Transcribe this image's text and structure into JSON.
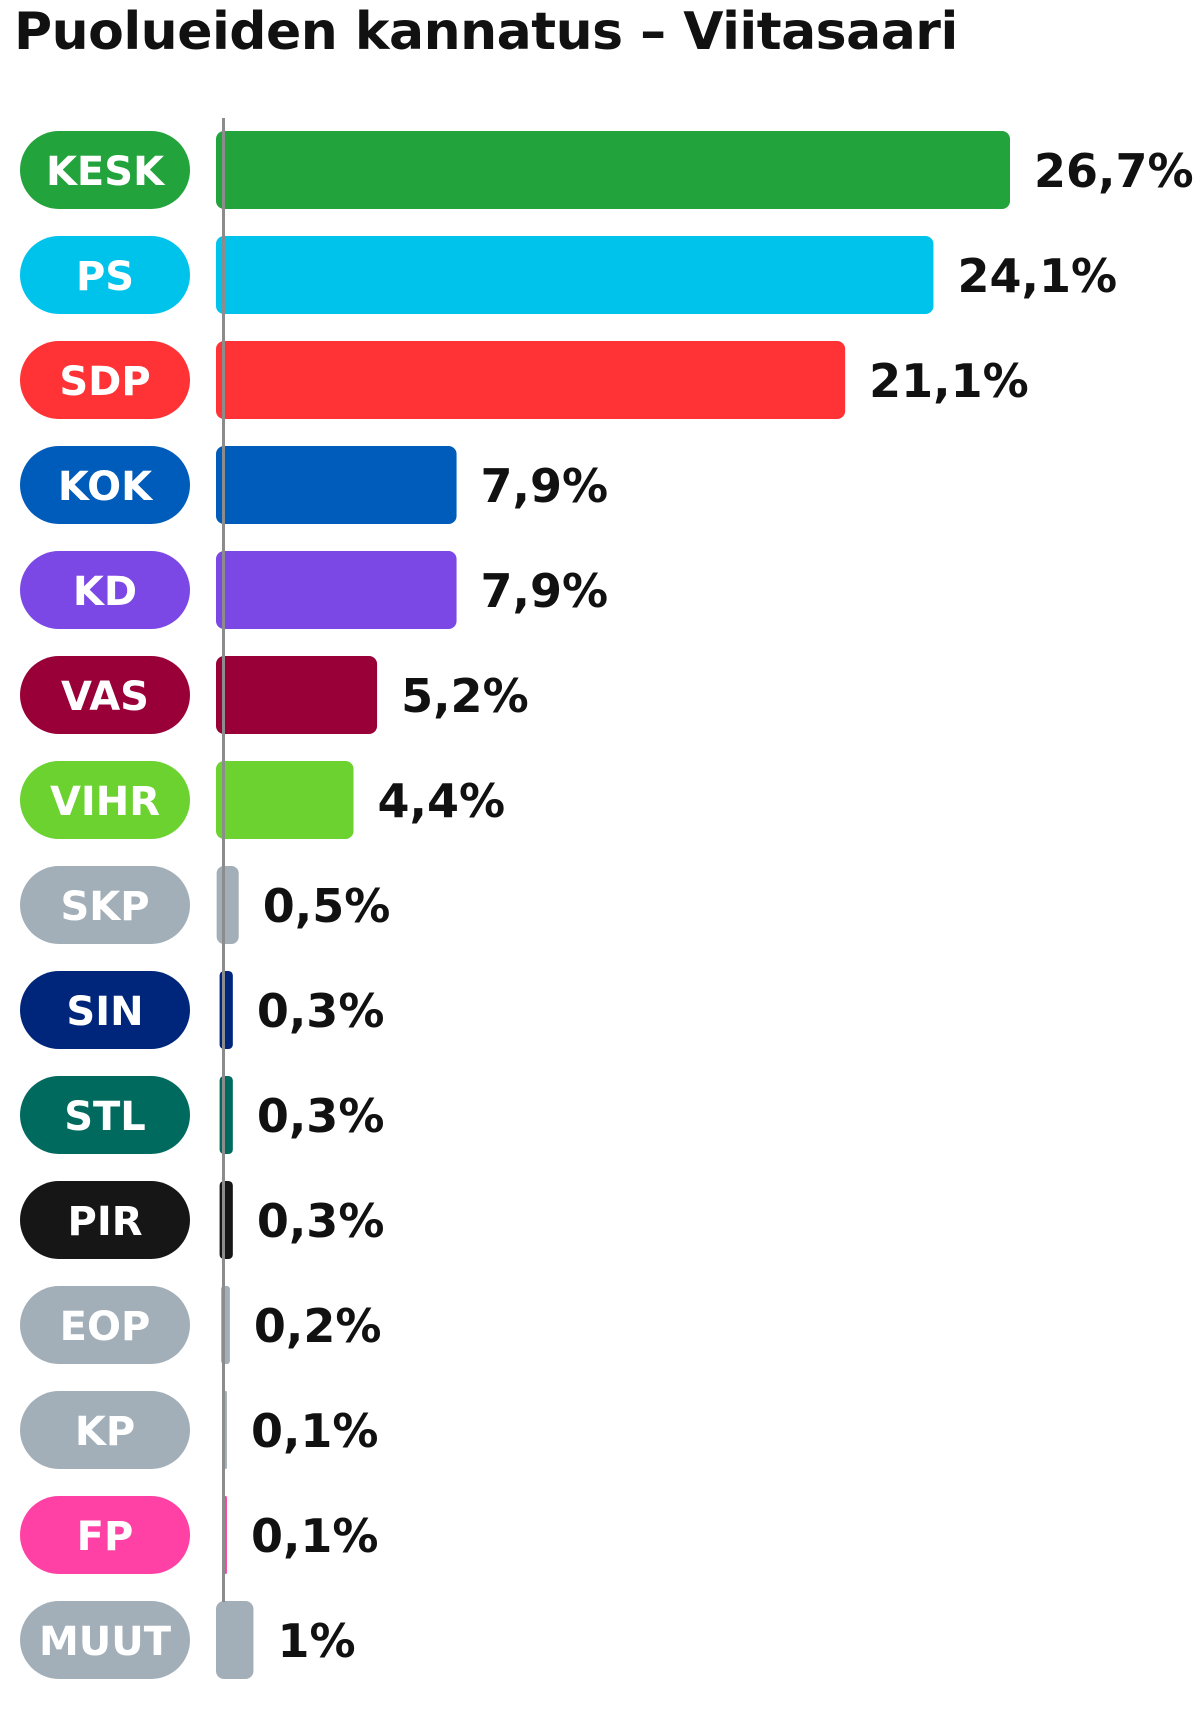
{
  "title": "Puolueiden kannatus – Viitasaari",
  "chart_data": {
    "type": "bar",
    "orientation": "horizontal",
    "title": "Puolueiden kannatus – Viitasaari",
    "xlabel": "",
    "ylabel": "",
    "xlim": [
      0,
      26.7
    ],
    "grid": false,
    "legend": "none",
    "categories": [
      "KESK",
      "PS",
      "SDP",
      "KOK",
      "KD",
      "VAS",
      "VIHR",
      "SKP",
      "SIN",
      "STL",
      "PIR",
      "EOP",
      "KP",
      "FP",
      "MUUT"
    ],
    "values": [
      26.7,
      24.1,
      21.1,
      7.9,
      7.9,
      5.2,
      4.4,
      0.5,
      0.3,
      0.3,
      0.3,
      0.2,
      0.1,
      0.1,
      1
    ],
    "value_labels": [
      "26,7%",
      "24,1%",
      "21,1%",
      "7,9%",
      "7,9%",
      "5,2%",
      "4,4%",
      "0,5%",
      "0,3%",
      "0,3%",
      "0,3%",
      "0,2%",
      "0,1%",
      "0,1%",
      "1%"
    ],
    "colors": [
      "#23a33c",
      "#00c3ec",
      "#ff3236",
      "#005cbb",
      "#7b47e5",
      "#9a0038",
      "#6bd22f",
      "#a2afb8",
      "#00267c",
      "#006a5f",
      "#161616",
      "#a2afb8",
      "#a2afb8",
      "#ff41a5",
      "#a2afb8"
    ]
  }
}
